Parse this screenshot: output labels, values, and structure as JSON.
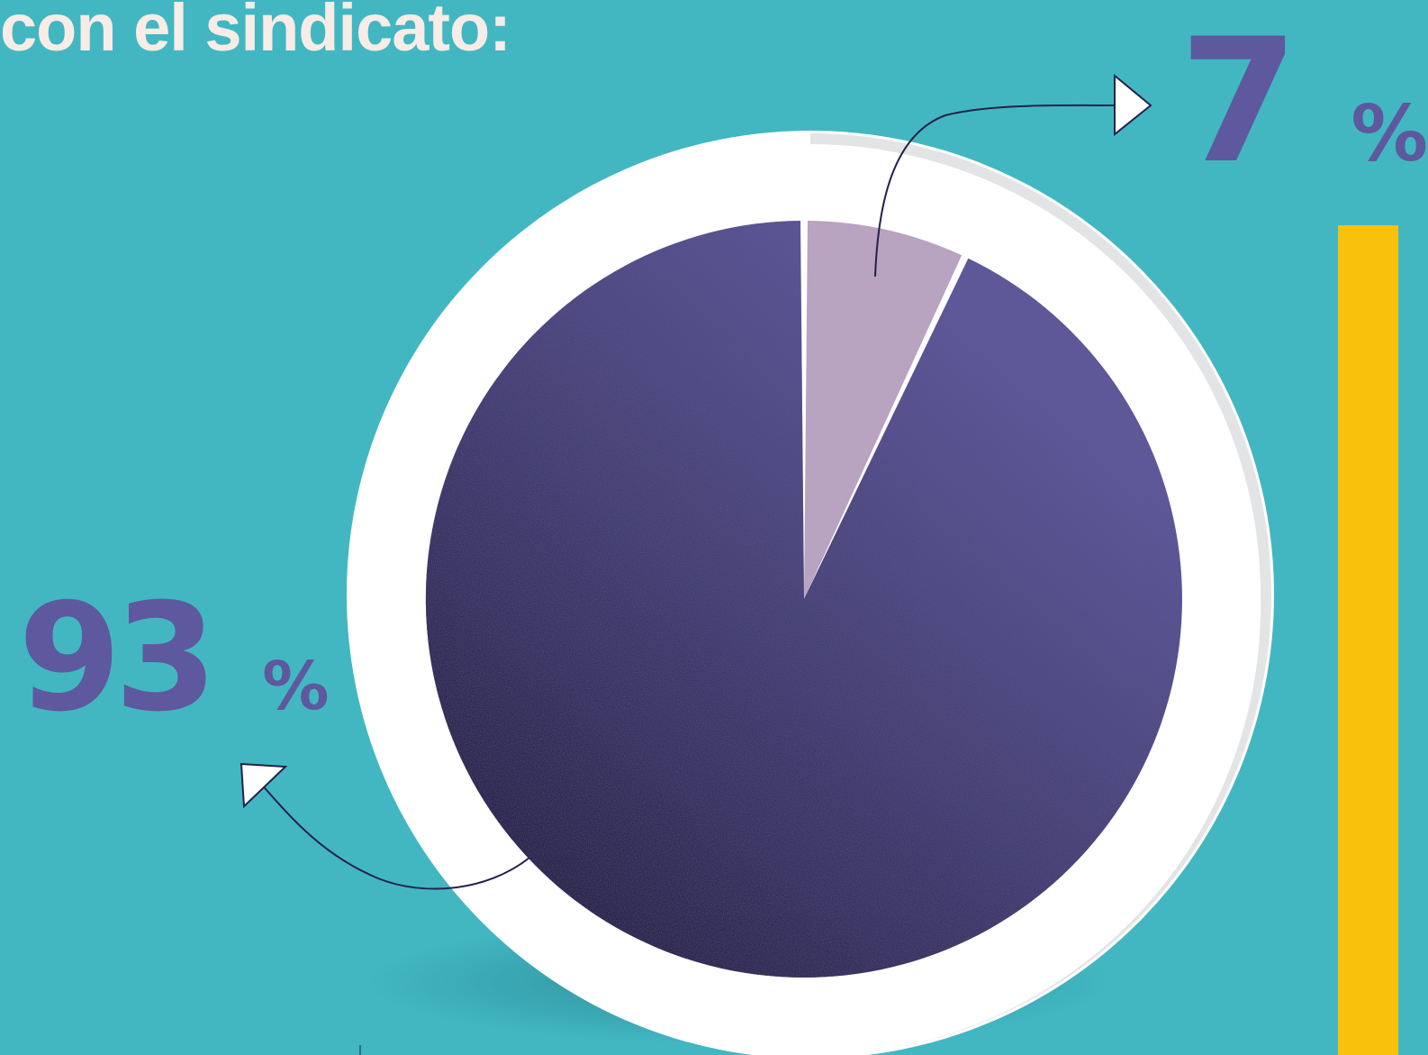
{
  "header": {
    "title": "con el sindicato:"
  },
  "chart_data": {
    "type": "pie",
    "slices": [
      {
        "value": 7,
        "label": "7%",
        "color": "#b8a3c0"
      },
      {
        "value": 93,
        "label": "93%",
        "color": "#5e589e"
      }
    ],
    "title": "",
    "colors": {
      "background": "#42b7c2",
      "accent_bar": "#f8c10c",
      "ring": "#ffffff",
      "label": "#5e589e",
      "dark_texture": "#1e1a3a"
    }
  }
}
